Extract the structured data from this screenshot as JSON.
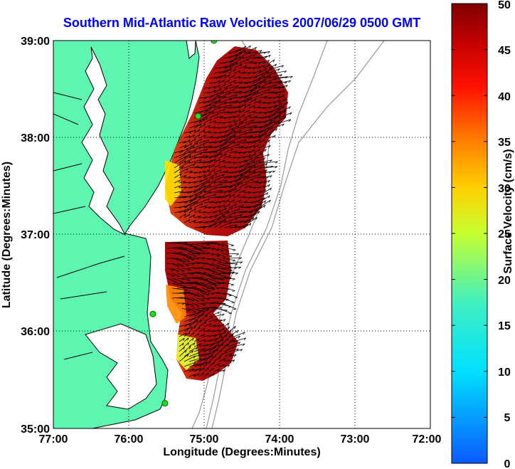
{
  "title": "Southern Mid-Atlantic Raw Velocities 2007/06/29 0500 GMT",
  "map": {
    "xlabel": "Longitude (Degrees:Minutes)",
    "ylabel": "Latitude (Degrees:Minutes)",
    "x_ticks": [
      "77:00",
      "76:00",
      "75:00",
      "74:00",
      "73:00",
      "72:00"
    ],
    "y_ticks": [
      "39:00",
      "38:00",
      "37:00",
      "36:00",
      "35:00"
    ],
    "lon_range": [
      -77,
      -72
    ],
    "lat_range": [
      35,
      39
    ],
    "land_color": "#5ef5b0",
    "grid": "dotted",
    "stations": [
      {
        "lon": -74.87,
        "lat": 39.0
      },
      {
        "lon": -75.08,
        "lat": 38.22
      },
      {
        "lon": -75.68,
        "lat": 36.18
      },
      {
        "lon": -75.52,
        "lat": 35.26
      }
    ]
  },
  "colorbar": {
    "label": "Surface Velocity (cm/s)",
    "ticks": [
      "50",
      "45",
      "40",
      "35",
      "30",
      "25",
      "20",
      "15",
      "10",
      "5",
      "0"
    ],
    "range": [
      0,
      50
    ]
  }
}
